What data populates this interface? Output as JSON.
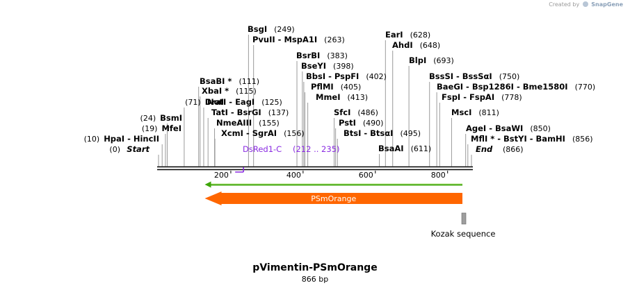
{
  "credit": {
    "prefix": "Created by",
    "brand": "SnapGene"
  },
  "plasmid": {
    "name": "pVimentin-PSmOrange",
    "size_label": "866 bp",
    "length": 866
  },
  "ends": {
    "start_label": "Start",
    "start_pos": "(0)",
    "end_label": "End",
    "end_pos": "(866)"
  },
  "ticks": [
    "200",
    "400",
    "600",
    "800"
  ],
  "tick_values": [
    200,
    400,
    600,
    800
  ],
  "left_sites": [
    {
      "pos": 10,
      "pos_label": "(10)",
      "name": "HpaI - HincII"
    },
    {
      "pos": 19,
      "pos_label": "(19)",
      "name": "MfeI"
    },
    {
      "pos": 24,
      "pos_label": "(24)",
      "name": "BsmI"
    },
    {
      "pos": 71,
      "pos_label": "(71)",
      "name": "DraI"
    }
  ],
  "right_sites": [
    {
      "pos": 111,
      "name": "BsaBI *",
      "pos_label": "(111)"
    },
    {
      "pos": 115,
      "name": "XbaI *",
      "pos_label": "(115)"
    },
    {
      "pos": 125,
      "name": "NotI - EagI",
      "pos_label": "(125)"
    },
    {
      "pos": 137,
      "name": "TatI - BsrGI",
      "pos_label": "(137)"
    },
    {
      "pos": 155,
      "name": "NmeAIII",
      "pos_label": "(155)"
    },
    {
      "pos": 156,
      "name": "XcmI - SgrAI",
      "pos_label": "(156)"
    },
    {
      "pos": 249,
      "name": "BsgI",
      "pos_label": "(249)"
    },
    {
      "pos": 263,
      "name": "PvuII - MspA1I",
      "pos_label": "(263)"
    },
    {
      "pos": 383,
      "name": "BsrBI",
      "pos_label": "(383)"
    },
    {
      "pos": 398,
      "name": "BseYI",
      "pos_label": "(398)"
    },
    {
      "pos": 402,
      "name": "BbsI - PspFI",
      "pos_label": "(402)"
    },
    {
      "pos": 405,
      "name": "PflMI",
      "pos_label": "(405)"
    },
    {
      "pos": 413,
      "name": "MmeI",
      "pos_label": "(413)"
    },
    {
      "pos": 486,
      "name": "SfcI",
      "pos_label": "(486)"
    },
    {
      "pos": 490,
      "name": "PstI",
      "pos_label": "(490)"
    },
    {
      "pos": 495,
      "name": "BtsI - BtsαI",
      "pos_label": "(495)"
    },
    {
      "pos": 611,
      "name": "BsaAI",
      "pos_label": "(611)"
    },
    {
      "pos": 628,
      "name": "EarI",
      "pos_label": "(628)"
    },
    {
      "pos": 648,
      "name": "AhdI",
      "pos_label": "(648)"
    },
    {
      "pos": 693,
      "name": "BlpI",
      "pos_label": "(693)"
    },
    {
      "pos": 750,
      "name": "BssSI - BssSαI",
      "pos_label": "(750)"
    },
    {
      "pos": 770,
      "name": "BaeGI - Bsp1286I - Bme1580I",
      "pos_label": "(770)"
    },
    {
      "pos": 778,
      "name": "FspI - FspAI",
      "pos_label": "(778)"
    },
    {
      "pos": 811,
      "name": "MscI",
      "pos_label": "(811)"
    },
    {
      "pos": 850,
      "name": "AgeI - BsaWI",
      "pos_label": "(850)"
    },
    {
      "pos": 856,
      "name": "MflI * - BstYI - BamHI",
      "pos_label": "(856)"
    }
  ],
  "primer": {
    "name": "DsRed1-C",
    "range_label": "(212 .. 235)",
    "start": 212,
    "end": 235,
    "color": "#8a2be2"
  },
  "features": [
    {
      "name": "PSmOrange",
      "start": 128,
      "end": 841,
      "strand": "reverse",
      "color": "#ff6600",
      "orf_color": "#3fa60a"
    },
    {
      "name": "Kozak sequence",
      "start": 841,
      "end": 852,
      "color": "#9e9e9e"
    }
  ],
  "colors": {
    "backbone": "#000000",
    "connector": "#9a9a9a"
  }
}
